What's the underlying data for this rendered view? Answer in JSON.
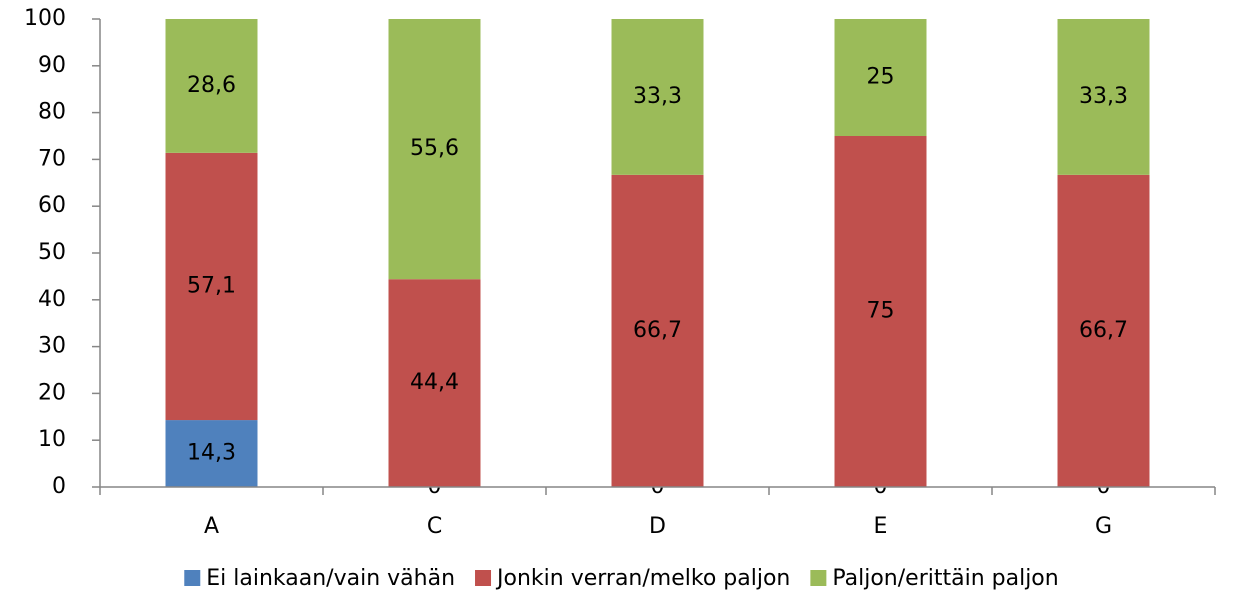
{
  "chart_data": {
    "type": "stacked_bar",
    "categories": [
      "A",
      "C",
      "D",
      "E",
      "G"
    ],
    "series": [
      {
        "name": "Ei lainkaan/vain vähän",
        "color": "#4f81bd",
        "values": [
          14.3,
          0,
          0,
          0,
          0
        ],
        "value_labels": [
          "14,3",
          "0",
          "0",
          "0",
          "0"
        ]
      },
      {
        "name": "Jonkin verran/melko paljon",
        "color": "#c0504d",
        "values": [
          57.1,
          44.4,
          66.7,
          75,
          66.7
        ],
        "value_labels": [
          "57,1",
          "44,4",
          "66,7",
          "75",
          "66,7"
        ]
      },
      {
        "name": "Paljon/erittäin paljon",
        "color": "#9bbb59",
        "values": [
          28.6,
          55.6,
          33.3,
          25,
          33.3
        ],
        "value_labels": [
          "28,6",
          "55,6",
          "33,3",
          "25",
          "33,3"
        ]
      }
    ],
    "ylim": [
      0,
      100
    ],
    "yticks": [
      0,
      10,
      20,
      30,
      40,
      50,
      60,
      70,
      80,
      90,
      100
    ],
    "grid": false,
    "legend": "bottom"
  }
}
